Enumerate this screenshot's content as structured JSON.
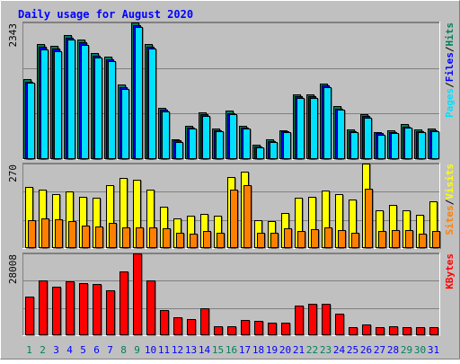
{
  "title": "Daily usage for August 2020",
  "days": [
    "1",
    "2",
    "3",
    "4",
    "5",
    "6",
    "7",
    "8",
    "9",
    "10",
    "11",
    "12",
    "13",
    "14",
    "15",
    "16",
    "17",
    "18",
    "19",
    "20",
    "21",
    "22",
    "23",
    "24",
    "25",
    "26",
    "27",
    "28",
    "29",
    "30",
    "31"
  ],
  "weekend_days": [
    "1",
    "2",
    "8",
    "9",
    "15",
    "16",
    "22",
    "23",
    "29",
    "30"
  ],
  "colors": {
    "background": "#c0c0c0",
    "panel": "#c0c0c0",
    "title": "#0000ff",
    "hits": "#00805c",
    "files": "#0000ff",
    "pages": "#00e0ff",
    "visits": "#ffff00",
    "sites": "#ff8000",
    "kbytes": "#ff0000",
    "weekday_label": "#0000ff",
    "weekend_label": "#00805c"
  },
  "chart_data": [
    {
      "type": "bar",
      "name": "hits-files-pages",
      "max_label": "2343",
      "legend": [
        "Pages",
        "Files",
        "Hits"
      ],
      "ylim": [
        0,
        2343
      ],
      "series": [
        {
          "name": "Hits",
          "values": [
            1379,
            1968,
            1936,
            2127,
            2047,
            1817,
            1760,
            1281,
            2343,
            1975,
            886,
            343,
            576,
            798,
            526,
            827,
            576,
            247,
            337,
            498,
            1114,
            1114,
            1300,
            902,
            511,
            771,
            465,
            487,
            594,
            505,
            518
          ]
        },
        {
          "name": "Files",
          "values": [
            1333,
            1922,
            1890,
            2081,
            2001,
            1769,
            1714,
            1235,
            2296,
            1927,
            843,
            322,
            543,
            766,
            496,
            791,
            547,
            223,
            315,
            478,
            1083,
            1083,
            1258,
            869,
            483,
            743,
            443,
            466,
            561,
            482,
            496
          ]
        },
        {
          "name": "Pages",
          "values": [
            1309,
            1886,
            1852,
            2048,
            1964,
            1736,
            1681,
            1203,
            2262,
            1894,
            822,
            296,
            518,
            744,
            471,
            766,
            519,
            201,
            295,
            455,
            1054,
            1054,
            1232,
            841,
            461,
            713,
            420,
            445,
            539,
            459,
            473
          ]
        }
      ]
    },
    {
      "type": "bar",
      "name": "visits-sites",
      "max_label": "270",
      "legend": [
        "Sites",
        "Visits"
      ],
      "ylim": [
        0,
        270
      ],
      "series": [
        {
          "name": "Visits",
          "values": [
            196,
            188,
            172,
            181,
            165,
            162,
            200,
            225,
            219,
            186,
            133,
            94,
            102,
            109,
            104,
            227,
            244,
            89,
            85,
            111,
            160,
            165,
            185,
            171,
            156,
            270,
            122,
            137,
            120,
            106,
            149
          ]
        },
        {
          "name": "Sites",
          "values": [
            89,
            95,
            91,
            86,
            71,
            70,
            80,
            66,
            66,
            66,
            63,
            48,
            47,
            54,
            48,
            187,
            202,
            50,
            48,
            63,
            55,
            60,
            65,
            58,
            50,
            190,
            56,
            58,
            58,
            47,
            55
          ]
        }
      ]
    },
    {
      "type": "bar",
      "name": "kbytes",
      "max_label": "28008",
      "legend": [
        "KBytes"
      ],
      "ylim": [
        0,
        28008
      ],
      "series": [
        {
          "name": "KBytes",
          "values": [
            13300,
            18800,
            16700,
            18400,
            17900,
            17600,
            15400,
            21700,
            28008,
            18700,
            8700,
            6100,
            5600,
            9300,
            3100,
            3100,
            5100,
            4800,
            4200,
            4200,
            10300,
            10900,
            10900,
            7400,
            2800,
            3600,
            2900,
            3200,
            2800,
            2700,
            2800
          ]
        }
      ]
    }
  ]
}
